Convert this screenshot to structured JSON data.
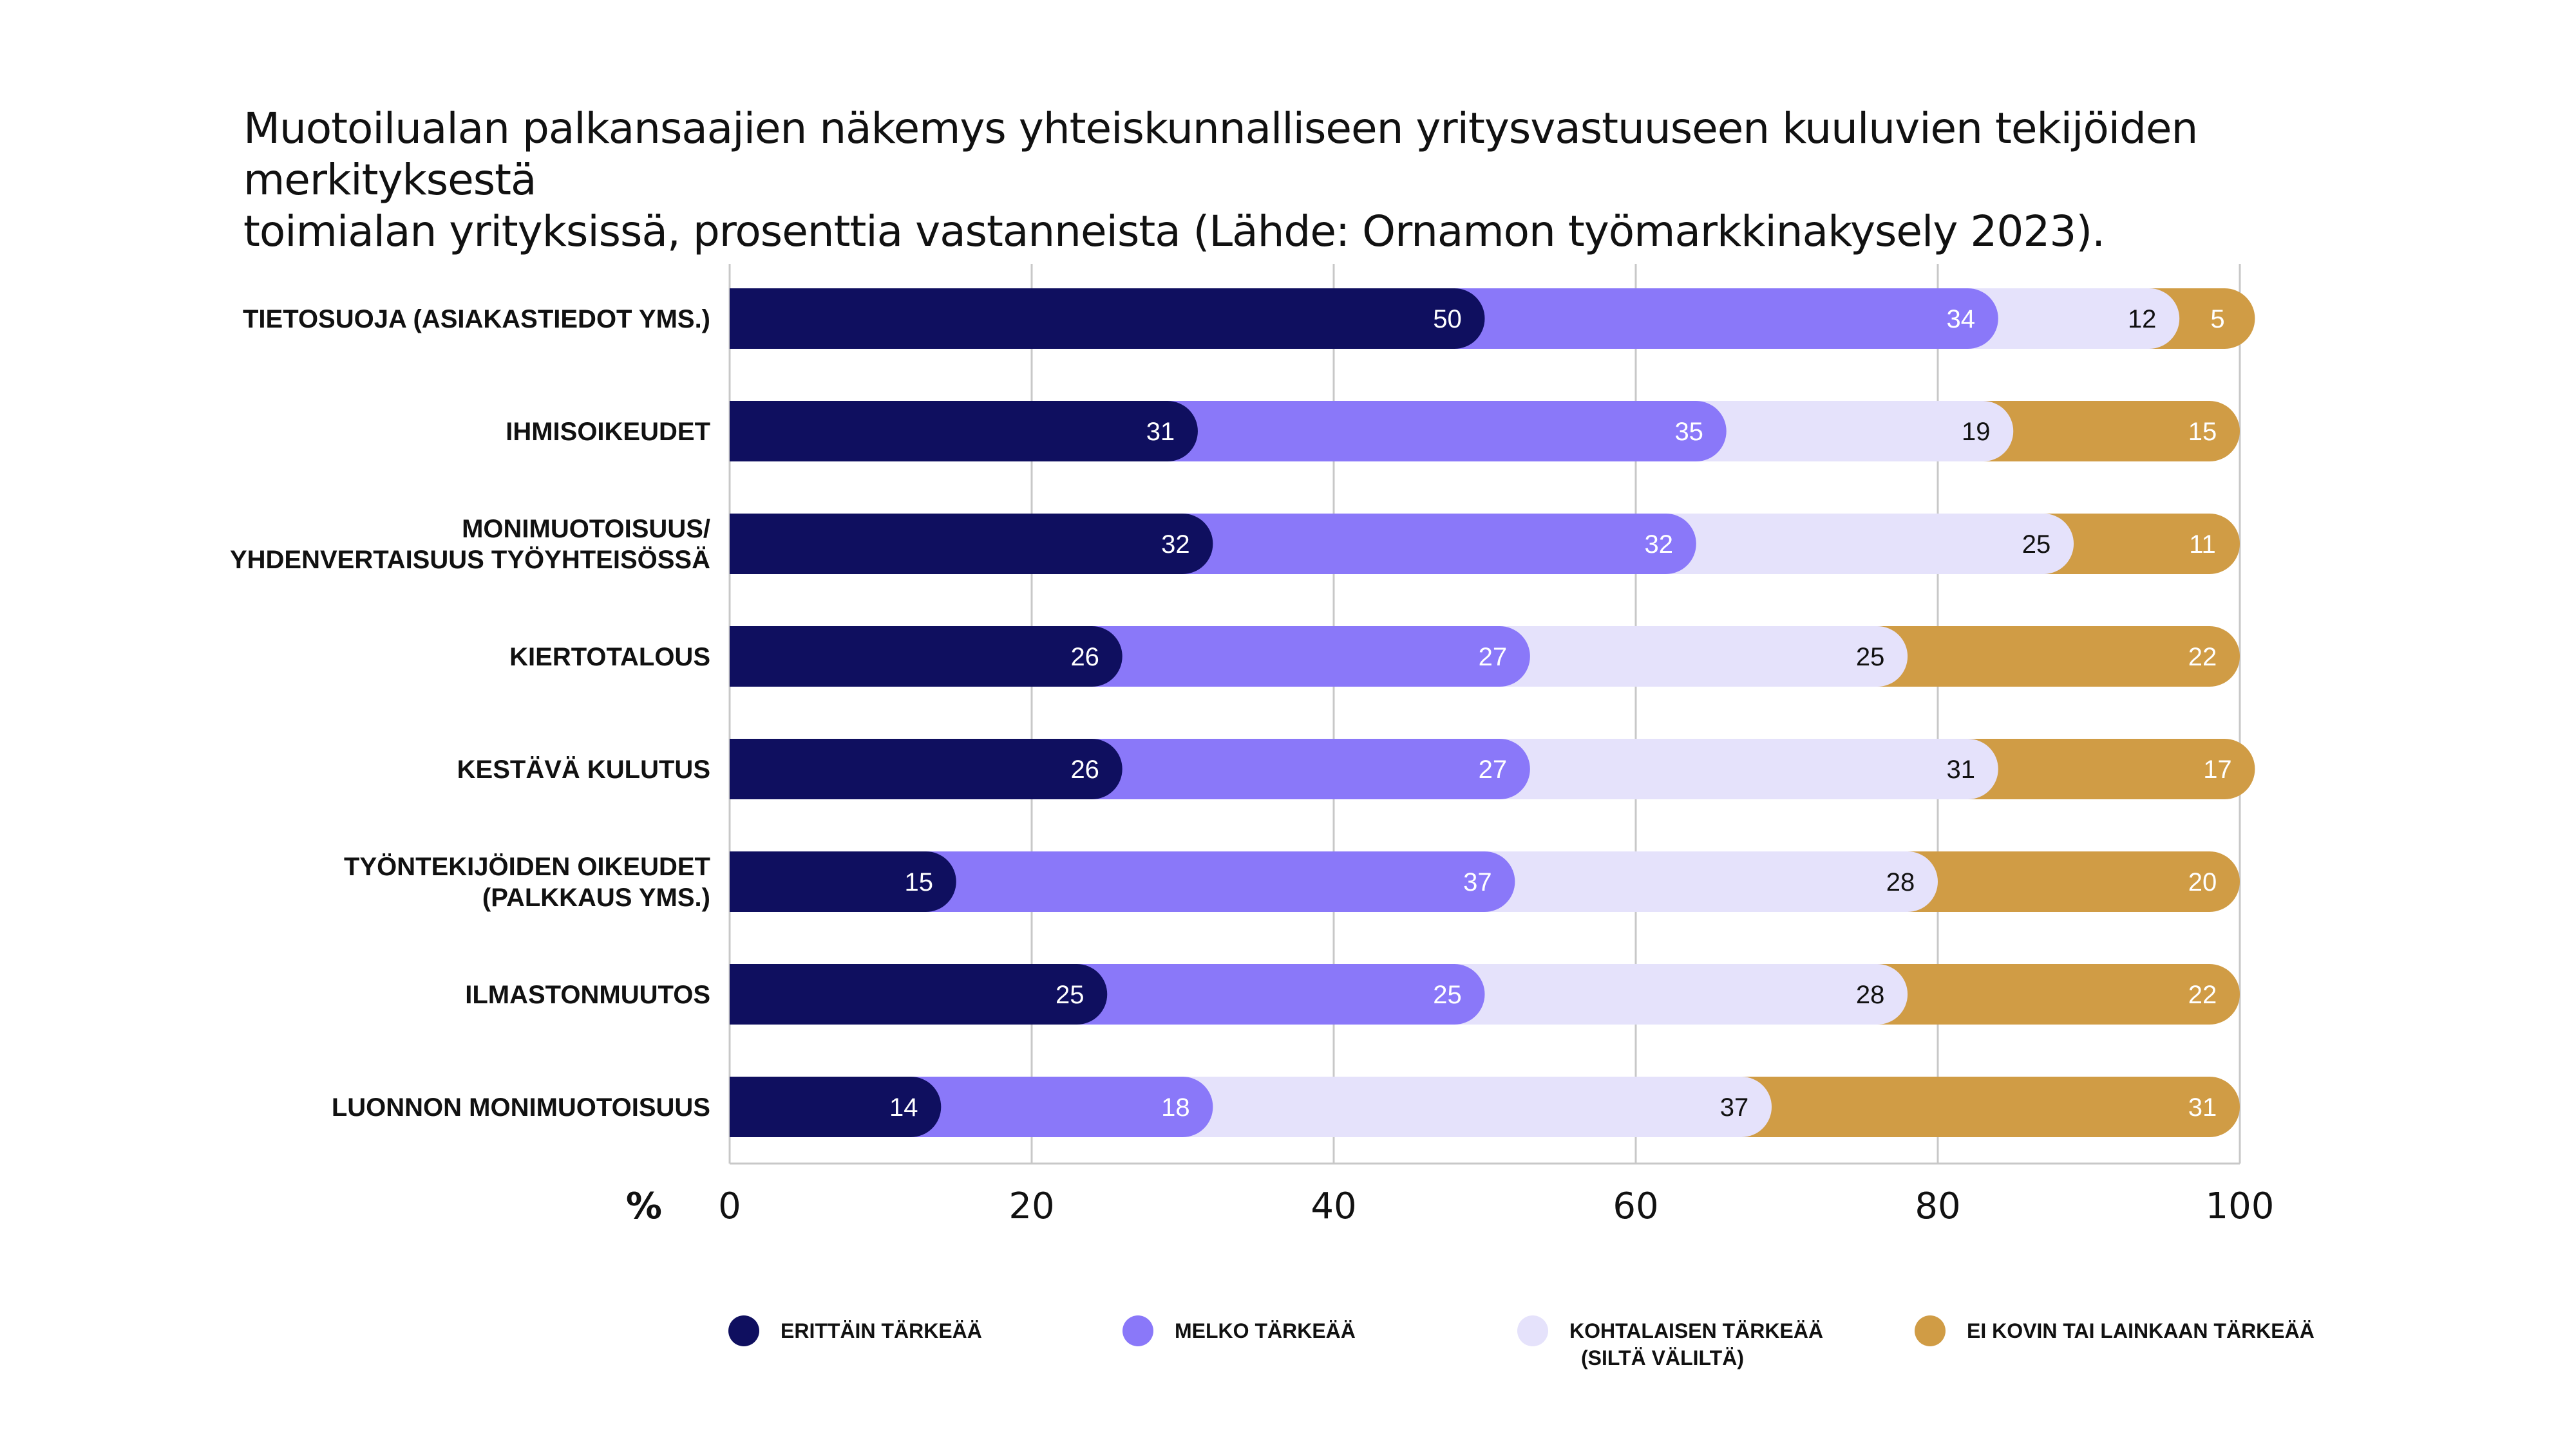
{
  "title_lines": [
    "Muotoilualan palkansaajien näkemys yhteiskunnalliseen yritysvastuuseen kuuluvien tekijöiden merkityksestä",
    "toimialan yrityksissä, prosenttia vastanneista (Lähde: Ornamon työmarkkinakysely 2023)."
  ],
  "chart_data": {
    "type": "bar",
    "orientation": "horizontal",
    "stacked": true,
    "title": "Muotoilualan palkansaajien näkemys yhteiskunnalliseen yritysvastuuseen kuuluvien tekijöiden merkityksestä toimialan yrityksissä, prosenttia vastanneista (Lähde: Ornamon työmarkkinakysely 2023).",
    "xlabel": "%",
    "xlim": [
      0,
      100
    ],
    "xticks": [
      0,
      20,
      40,
      60,
      80,
      100
    ],
    "grid": true,
    "legend_position": "bottom",
    "categories": [
      [
        "TIETOSUOJA (ASIAKASTIEDOT YMS.)"
      ],
      [
        "IHMISOIKEUDET"
      ],
      [
        "MONIMUOTOISUUS/",
        "YHDENVERTAISUUS TYÖYHTEISÖSSÄ"
      ],
      [
        "KIERTOTALOUS"
      ],
      [
        "KESTÄVÄ KULUTUS"
      ],
      [
        "TYÖNTEKIJÖIDEN OIKEUDET",
        "(PALKKAUS YMS.)"
      ],
      [
        "ILMASTONMUUTOS"
      ],
      [
        "LUONNON MONIMUOTOISUUS"
      ]
    ],
    "series": [
      {
        "name": "ERITTÄIN TÄRKEÄÄ",
        "color": "#0f0f5f",
        "label_color": "#ffffff",
        "values": [
          50,
          31,
          32,
          26,
          26,
          15,
          25,
          14
        ]
      },
      {
        "name": "MELKO TÄRKEÄÄ",
        "color": "#8a78f9",
        "label_color": "#ffffff",
        "values": [
          34,
          35,
          32,
          27,
          27,
          37,
          25,
          18
        ]
      },
      {
        "name": "KOHTALAISEN TÄRKEÄÄ (SILTÄ VÄLILTÄ)",
        "legend_lines": [
          "KOHTALAISEN TÄRKEÄÄ",
          "(SILTÄ VÄLILTÄ)"
        ],
        "color": "#e5e2fb",
        "label_color": "#111111",
        "values": [
          12,
          19,
          25,
          25,
          31,
          28,
          28,
          37
        ]
      },
      {
        "name": "EI KOVIN TAI LAINKAAN TÄRKEÄÄ",
        "color": "#d09c45",
        "label_color": "#ffffff",
        "values": [
          5,
          15,
          11,
          22,
          17,
          20,
          22,
          31
        ]
      }
    ]
  }
}
